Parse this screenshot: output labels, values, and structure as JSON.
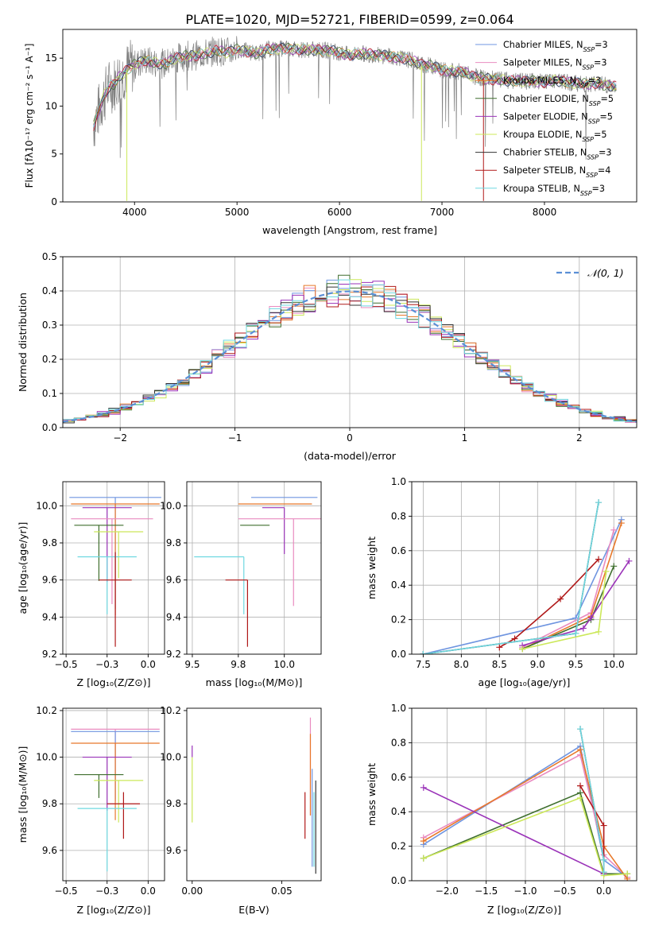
{
  "figure": {
    "title": "PLATE=1020, MJD=52721, FIBERID=0599, z=0.064"
  },
  "colors": {
    "c_miles": "#6f95e0",
    "s_miles": "#e98bc0",
    "k_miles": "#e8782a",
    "c_elodie": "#3f6f2e",
    "s_elodie": "#9a32b8",
    "k_elodie": "#cce85a",
    "c_stelib": "#333333",
    "s_stelib": "#b01818",
    "k_stelib": "#6ed8e0",
    "obs": "#808080",
    "norm": "#5a8fd6"
  },
  "legend_entries": [
    {
      "key": "c_miles",
      "label": "Chabrier MILES, N",
      "sub": "SSP",
      "suffix": "=3"
    },
    {
      "key": "s_miles",
      "label": "Salpeter MILES, N",
      "sub": "SSP",
      "suffix": "=3"
    },
    {
      "key": "k_miles",
      "label": "Kroupa MILES, N",
      "sub": "SSP",
      "suffix": "=3"
    },
    {
      "key": "c_elodie",
      "label": "Chabrier ELODIE, N",
      "sub": "SSP",
      "suffix": "=5"
    },
    {
      "key": "s_elodie",
      "label": "Salpeter ELODIE, N",
      "sub": "SSP",
      "suffix": "=5"
    },
    {
      "key": "k_elodie",
      "label": "Kroupa ELODIE, N",
      "sub": "SSP",
      "suffix": "=5"
    },
    {
      "key": "c_stelib",
      "label": "Chabrier STELIB, N",
      "sub": "SSP",
      "suffix": "=3"
    },
    {
      "key": "s_stelib",
      "label": "Salpeter STELIB, N",
      "sub": "SSP",
      "suffix": "=4"
    },
    {
      "key": "k_stelib",
      "label": "Kroupa STELIB, N",
      "sub": "SSP",
      "suffix": "=3"
    }
  ],
  "chart_data": [
    {
      "id": "spectrum",
      "type": "line",
      "xlabel": "wavelength [Angstrom, rest frame]",
      "ylabel": "Flux [fλ10⁻¹⁷ erg cm⁻² s⁻¹ A⁻¹]",
      "xlim": [
        3300,
        8900
      ],
      "ylim": [
        0,
        18
      ],
      "xticks": [
        4000,
        5000,
        6000,
        7000,
        8000
      ],
      "yticks": [
        0,
        5,
        10,
        15
      ],
      "grid": false,
      "legend": "right",
      "model_wave": [
        3600,
        3650,
        3700,
        3750,
        3800,
        3850,
        3900,
        3950,
        4000,
        4100,
        4200,
        4300,
        4400,
        4500,
        4600,
        4700,
        4800,
        4900,
        5000,
        5100,
        5200,
        5300,
        5400,
        5500,
        5600,
        5700,
        5800,
        5900,
        6000,
        6100,
        6200,
        6300,
        6400,
        6500,
        6600,
        6700,
        6800,
        6900,
        7000,
        7100,
        7200,
        7300,
        7400,
        7500,
        7600,
        7700,
        7800,
        7900,
        8000,
        8100,
        8200,
        8300,
        8400,
        8500,
        8600,
        8700
      ],
      "model_flux": [
        8.0,
        9.5,
        11.0,
        12.0,
        12.3,
        13.0,
        13.5,
        14.0,
        14.3,
        14.8,
        14.5,
        14.4,
        15.0,
        15.2,
        15.3,
        15.5,
        15.8,
        15.6,
        15.9,
        15.7,
        15.5,
        15.9,
        16.0,
        16.0,
        15.9,
        15.9,
        15.8,
        15.8,
        15.6,
        15.3,
        15.5,
        15.4,
        15.3,
        15.2,
        15.0,
        14.8,
        14.3,
        14.2,
        13.8,
        13.6,
        13.6,
        13.1,
        12.9,
        12.8,
        12.7,
        12.6,
        12.6,
        12.6,
        12.5,
        12.7,
        12.5,
        12.4,
        12.3,
        12.4,
        12.2,
        12.0
      ],
      "dips": [
        {
          "x": 3925,
          "y": 0.1
        },
        {
          "x": 6800,
          "y": 0.1
        },
        {
          "x": 7405,
          "y": 0.1
        }
      ]
    },
    {
      "id": "residual_hist",
      "type": "step",
      "xlabel": "(data-model)/error",
      "ylabel": "Normed distribution",
      "xlim": [
        -2.5,
        2.5
      ],
      "ylim": [
        0,
        0.5
      ],
      "xticks": [
        -2,
        -1,
        0,
        1,
        2
      ],
      "yticks": [
        0.0,
        0.1,
        0.2,
        0.3,
        0.4,
        0.5
      ],
      "grid": true,
      "legend": "top-right",
      "legend_label": "𝒩(0, 1)",
      "bin_width": 0.1,
      "bin_start": -2.5
    },
    {
      "id": "age_vs_Z",
      "type": "errorbar",
      "xlabel": "Z [log₁₀(Z/Z⊙)]",
      "ylabel": "age  [log₁₀(age/yr)]",
      "xlim": [
        -0.52,
        0.1
      ],
      "ylim": [
        9.2,
        10.13
      ],
      "xticks": [
        -0.5,
        -0.25,
        0.0
      ],
      "yticks": [
        9.2,
        9.4,
        9.6,
        9.8,
        10.0
      ],
      "grid": true,
      "points": [
        {
          "key": "c_miles",
          "x": -0.2,
          "xerr": [
            0.28,
            0.28
          ],
          "y": 10.045,
          "yerr": [
            0.6,
            0.0
          ]
        },
        {
          "key": "k_miles",
          "x": -0.2,
          "xerr": [
            0.27,
            0.27
          ],
          "y": 10.01,
          "yerr": [
            0.6,
            0.0
          ]
        },
        {
          "key": "s_elodie",
          "x": -0.25,
          "xerr": [
            0.15,
            0.15
          ],
          "y": 9.99,
          "yerr": [
            0.4,
            0.0
          ]
        },
        {
          "key": "s_miles",
          "x": -0.22,
          "xerr": [
            0.25,
            0.25
          ],
          "y": 9.93,
          "yerr": [
            0.46,
            0.0
          ]
        },
        {
          "key": "c_elodie",
          "x": -0.3,
          "xerr": [
            0.15,
            0.15
          ],
          "y": 9.895,
          "yerr": [
            0.3,
            0.0
          ]
        },
        {
          "key": "k_elodie",
          "x": -0.18,
          "xerr": [
            0.15,
            0.15
          ],
          "y": 9.86,
          "yerr": [
            0.25,
            0.0
          ]
        },
        {
          "key": "k_stelib",
          "x": -0.25,
          "xerr": [
            0.18,
            0.18
          ],
          "y": 9.725,
          "yerr": [
            0.31,
            0.0
          ]
        },
        {
          "key": "s_stelib",
          "x": -0.2,
          "xerr": [
            0.1,
            0.1
          ],
          "y": 9.6,
          "yerr": [
            0.36,
            0.15
          ]
        },
        {
          "key": "c_stelib",
          "x": -0.25,
          "xerr": [
            0.0,
            0.0
          ],
          "y": 9.6,
          "yerr": [
            0.0,
            0.0
          ]
        }
      ]
    },
    {
      "id": "age_vs_mass",
      "type": "errorbar",
      "xlabel": "mass [log₁₀(M/M⊙)]",
      "ylabel": "",
      "xlim": [
        9.47,
        10.2
      ],
      "ylim": [
        9.2,
        10.13
      ],
      "xticks": [
        9.5,
        9.75,
        10.0
      ],
      "yticks": [
        9.2,
        9.4,
        9.6,
        9.8,
        10.0
      ],
      "grid": true,
      "points": [
        {
          "key": "c_miles",
          "x": 10.0,
          "xerr": [
            0.18,
            0.18
          ],
          "y": 10.045,
          "yerr": [
            0.0,
            0.0
          ]
        },
        {
          "key": "k_miles",
          "x": 9.95,
          "xerr": [
            0.2,
            0.2
          ],
          "y": 10.01,
          "yerr": [
            0.0,
            0.0
          ]
        },
        {
          "key": "s_elodie",
          "x": 10.0,
          "xerr": [
            0.12,
            0.0
          ],
          "y": 9.99,
          "yerr": [
            0.25,
            0.0
          ]
        },
        {
          "key": "s_miles",
          "x": 10.05,
          "xerr": [
            0.3,
            0.15
          ],
          "y": 9.93,
          "yerr": [
            0.47,
            0.0
          ]
        },
        {
          "key": "c_elodie",
          "x": 9.88,
          "xerr": [
            0.12,
            0.04
          ],
          "y": 9.895,
          "yerr": [
            0.0,
            0.0
          ]
        },
        {
          "key": "k_elodie",
          "x": 9.91,
          "xerr": [
            0.0,
            0.0
          ],
          "y": 9.86,
          "yerr": [
            0.0,
            0.0
          ]
        },
        {
          "key": "k_stelib",
          "x": 9.78,
          "xerr": [
            0.27,
            0.0
          ],
          "y": 9.725,
          "yerr": [
            0.31,
            0.0
          ]
        },
        {
          "key": "s_stelib",
          "x": 9.8,
          "xerr": [
            0.12,
            0.0
          ],
          "y": 9.6,
          "yerr": [
            0.36,
            0.0
          ]
        }
      ]
    },
    {
      "id": "massweight_vs_age",
      "type": "line",
      "xlabel": "age  [log₁₀(age/yr)]",
      "ylabel": "mass weight",
      "xlim": [
        7.35,
        10.3
      ],
      "ylim": [
        0,
        1
      ],
      "xticks": [
        7.5,
        8.0,
        8.5,
        9.0,
        9.5,
        10.0
      ],
      "yticks": [
        0.0,
        0.2,
        0.4,
        0.6,
        0.8,
        1.0
      ],
      "grid": true,
      "series": [
        {
          "key": "c_miles",
          "x": [
            7.5,
            9.5,
            10.1
          ],
          "y": [
            0.0,
            0.21,
            0.78
          ]
        },
        {
          "key": "s_miles",
          "x": [
            8.8,
            9.7,
            10.0
          ],
          "y": [
            0.04,
            0.24,
            0.72
          ]
        },
        {
          "key": "k_miles",
          "x": [
            8.8,
            9.7,
            10.1
          ],
          "y": [
            0.03,
            0.22,
            0.76
          ]
        },
        {
          "key": "c_elodie",
          "x": [
            8.8,
            9.7,
            10.0
          ],
          "y": [
            0.03,
            0.2,
            0.51
          ]
        },
        {
          "key": "s_elodie",
          "x": [
            8.8,
            9.6,
            9.7,
            10.2
          ],
          "y": [
            0.05,
            0.15,
            0.21,
            0.54
          ]
        },
        {
          "key": "k_elodie",
          "x": [
            8.8,
            9.8,
            9.9
          ],
          "y": [
            0.03,
            0.13,
            0.48
          ]
        },
        {
          "key": "c_stelib",
          "x": [
            7.5,
            9.5,
            9.8
          ],
          "y": [
            0.0,
            0.12,
            0.88
          ]
        },
        {
          "key": "s_stelib",
          "x": [
            8.5,
            8.7,
            9.3,
            9.8
          ],
          "y": [
            0.04,
            0.09,
            0.32,
            0.55
          ]
        },
        {
          "key": "k_stelib",
          "x": [
            7.5,
            9.5,
            9.8
          ],
          "y": [
            0.0,
            0.12,
            0.88
          ]
        }
      ]
    },
    {
      "id": "mass_vs_Z",
      "type": "errorbar",
      "xlabel": "Z [log₁₀(Z/Z⊙)]",
      "ylabel": "mass [log₁₀(M/M⊙)]",
      "xlim": [
        -0.52,
        0.1
      ],
      "ylim": [
        9.47,
        10.21
      ],
      "xticks": [
        -0.5,
        -0.25,
        0.0
      ],
      "yticks": [
        9.6,
        9.8,
        10.0,
        10.2
      ],
      "grid": true,
      "points": [
        {
          "key": "s_miles",
          "x": -0.2,
          "xerr": [
            0.27,
            0.27
          ],
          "y": 10.12,
          "yerr": [
            0.3,
            0.0
          ]
        },
        {
          "key": "c_miles",
          "x": -0.2,
          "xerr": [
            0.27,
            0.27
          ],
          "y": 10.11,
          "yerr": [
            0.3,
            0.0
          ]
        },
        {
          "key": "k_miles",
          "x": -0.2,
          "xerr": [
            0.27,
            0.27
          ],
          "y": 10.06,
          "yerr": [
            0.33,
            0.0
          ]
        },
        {
          "key": "s_elodie",
          "x": -0.25,
          "xerr": [
            0.15,
            0.15
          ],
          "y": 10.0,
          "yerr": [
            0.23,
            0.0
          ]
        },
        {
          "key": "c_elodie",
          "x": -0.3,
          "xerr": [
            0.15,
            0.15
          ],
          "y": 9.925,
          "yerr": [
            0.1,
            0.0
          ]
        },
        {
          "key": "k_elodie",
          "x": -0.18,
          "xerr": [
            0.15,
            0.15
          ],
          "y": 9.9,
          "yerr": [
            0.18,
            0.0
          ]
        },
        {
          "key": "s_stelib",
          "x": -0.15,
          "xerr": [
            0.1,
            0.1
          ],
          "y": 9.8,
          "yerr": [
            0.15,
            0.05
          ]
        },
        {
          "key": "k_stelib",
          "x": -0.25,
          "xerr": [
            0.18,
            0.18
          ],
          "y": 9.78,
          "yerr": [
            0.27,
            0.0
          ]
        }
      ]
    },
    {
      "id": "mass_vs_ebv",
      "type": "errorbar",
      "xlabel": "E(B-V)",
      "ylabel": "",
      "xlim": [
        -0.003,
        0.072
      ],
      "ylim": [
        9.47,
        10.21
      ],
      "xticks": [
        0.0,
        0.05
      ],
      "yticks": [
        9.6,
        9.8,
        10.0,
        10.2
      ],
      "grid": false,
      "points": [
        {
          "key": "s_elodie",
          "x": 0.0,
          "xerr": [
            0,
            0
          ],
          "y": 10.0,
          "yerr": [
            0.0,
            0.05
          ]
        },
        {
          "key": "k_elodie",
          "x": 0.0,
          "xerr": [
            0,
            0
          ],
          "y": 9.9,
          "yerr": [
            0.18,
            0.1
          ]
        },
        {
          "key": "s_stelib",
          "x": 0.063,
          "xerr": [
            0,
            0
          ],
          "y": 9.75,
          "yerr": [
            0.1,
            0.1
          ]
        },
        {
          "key": "s_miles",
          "x": 0.066,
          "xerr": [
            0,
            0
          ],
          "y": 10.0,
          "yerr": [
            0.25,
            0.17
          ]
        },
        {
          "key": "k_miles",
          "x": 0.066,
          "xerr": [
            0,
            0
          ],
          "y": 9.95,
          "yerr": [
            0.2,
            0.15
          ]
        },
        {
          "key": "c_miles",
          "x": 0.067,
          "xerr": [
            0,
            0
          ],
          "y": 9.85,
          "yerr": [
            0.32,
            0.1
          ]
        },
        {
          "key": "c_stelib",
          "x": 0.069,
          "xerr": [
            0,
            0
          ],
          "y": 9.7,
          "yerr": [
            0.2,
            0.2
          ]
        },
        {
          "key": "k_stelib",
          "x": 0.068,
          "xerr": [
            0,
            0
          ],
          "y": 9.75,
          "yerr": [
            0.22,
            0.1
          ]
        }
      ]
    },
    {
      "id": "massweight_vs_Z",
      "type": "line",
      "xlabel": "Z [log₁₀(Z/Z⊙)]",
      "ylabel": "mass weight",
      "xlim": [
        -2.45,
        0.42
      ],
      "ylim": [
        0,
        1
      ],
      "xticks": [
        -2.0,
        -1.5,
        -1.0,
        -0.5,
        0.0
      ],
      "yticks": [
        0.0,
        0.2,
        0.4,
        0.6,
        0.8,
        1.0
      ],
      "grid": true,
      "series": [
        {
          "key": "c_miles",
          "x": [
            -2.3,
            -0.3,
            0.0,
            0.3
          ],
          "y": [
            0.21,
            0.78,
            0.12,
            0.02
          ]
        },
        {
          "key": "s_miles",
          "x": [
            -2.3,
            -0.3,
            0.0,
            0.3
          ],
          "y": [
            0.25,
            0.73,
            0.15,
            0.02
          ]
        },
        {
          "key": "k_miles",
          "x": [
            -2.3,
            -0.3,
            0.0,
            0.3
          ],
          "y": [
            0.23,
            0.76,
            0.2,
            0.01
          ]
        },
        {
          "key": "c_elodie",
          "x": [
            -2.3,
            -0.3,
            0.0,
            0.3
          ],
          "y": [
            0.13,
            0.51,
            0.04,
            0.04
          ]
        },
        {
          "key": "s_elodie",
          "x": [
            -2.3,
            0.0
          ],
          "y": [
            0.54,
            0.04
          ]
        },
        {
          "key": "k_elodie",
          "x": [
            -2.3,
            -0.3,
            0.0,
            0.3
          ],
          "y": [
            0.13,
            0.48,
            0.03,
            0.04
          ]
        },
        {
          "key": "c_stelib",
          "x": [
            -0.3,
            0.0
          ],
          "y": [
            0.88,
            0.12
          ]
        },
        {
          "key": "s_stelib",
          "x": [
            -0.3,
            0.0,
            0.0
          ],
          "y": [
            0.55,
            0.32,
            0.05
          ]
        },
        {
          "key": "k_stelib",
          "x": [
            -0.3,
            0.0,
            0.0
          ],
          "y": [
            0.88,
            0.12,
            0.05
          ]
        }
      ]
    }
  ]
}
